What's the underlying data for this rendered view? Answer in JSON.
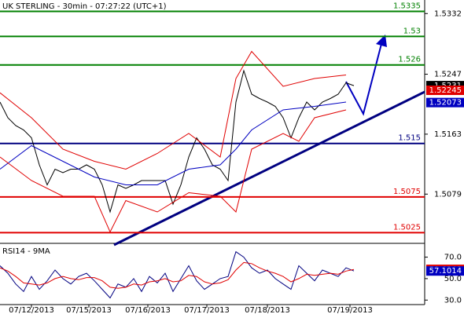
{
  "chart_data": [
    {
      "type": "line",
      "title": "UK STERLING - 30min - 07:27:22 (UTC+1)",
      "xlim": [
        0,
        54
      ],
      "xticks": [
        {
          "value": 4,
          "label": "07/12/2013"
        },
        {
          "value": 11.3,
          "label": "07/15/2013"
        },
        {
          "value": 18.8,
          "label": "07/16/2013"
        },
        {
          "value": 26.3,
          "label": "07/17/2013"
        },
        {
          "value": 34,
          "label": "07/18/2013"
        },
        {
          "value": 44.5,
          "label": "07/19/2013"
        }
      ],
      "ylim": [
        1.501,
        1.5351
      ],
      "yticks": [
        1.5332,
        1.5247,
        1.5163,
        1.5079
      ],
      "levels": [
        {
          "value": 1.5335,
          "color": "#008000"
        },
        {
          "value": 1.53,
          "color": "#008000"
        },
        {
          "value": 1.526,
          "color": "#008000"
        },
        {
          "value": 1.515,
          "color": "#000080"
        },
        {
          "value": 1.5075,
          "color": "#e00000"
        },
        {
          "value": 1.5025,
          "color": "#e00000"
        }
      ],
      "price_tags": [
        {
          "value": 1.5231,
          "color": "#000000"
        },
        {
          "value": 1.52245,
          "color": "#e00000"
        },
        {
          "value": 1.52073,
          "color": "#0000c0"
        }
      ],
      "series": [
        {
          "color": "#000000",
          "values": [
            1.5208,
            1.5186,
            1.5175,
            1.5169,
            1.5158,
            1.512,
            1.5092,
            1.5114,
            1.5109,
            1.5114,
            1.5114,
            1.512,
            1.5114,
            1.5092,
            1.5054,
            1.5092,
            1.5087,
            1.5092,
            1.5098,
            1.5098,
            1.5098,
            1.5098,
            1.5065,
            1.5092,
            1.5131,
            1.5158,
            1.5142,
            1.512,
            1.5114,
            1.5098,
            1.5208,
            1.5252,
            1.5219,
            1.5213,
            1.5208,
            1.5202,
            1.5186,
            1.5158,
            1.5186,
            1.5208,
            1.5197,
            1.5208,
            1.5213,
            1.5219,
            1.5235,
            1.5231
          ]
        },
        {
          "color": "#0000c0",
          "x": [
            0,
            4,
            8,
            12,
            16,
            20,
            24,
            28,
            30,
            32,
            36,
            40,
            44
          ],
          "values": [
            1.5114,
            1.5147,
            1.5125,
            1.5103,
            1.5092,
            1.5092,
            1.5114,
            1.512,
            1.5142,
            1.5169,
            1.5197,
            1.5202,
            1.5208
          ]
        },
        {
          "color": "#e00000",
          "x": [
            0,
            4,
            8,
            12,
            16,
            20,
            24,
            28,
            30,
            32,
            36,
            40,
            44
          ],
          "values": [
            1.5221,
            1.5186,
            1.5142,
            1.5125,
            1.5114,
            1.5136,
            1.5164,
            1.5131,
            1.5241,
            1.5279,
            1.523,
            1.5241,
            1.5246
          ]
        },
        {
          "color": "#e00000",
          "x": [
            0,
            4,
            8,
            12,
            14,
            16,
            20,
            24,
            28,
            30,
            32,
            36,
            38,
            40,
            44
          ],
          "values": [
            1.5131,
            1.5098,
            1.5076,
            1.5076,
            1.5026,
            1.507,
            1.5054,
            1.5081,
            1.5076,
            1.5054,
            1.5142,
            1.5164,
            1.5153,
            1.5186,
            1.5197
          ]
        }
      ]
    },
    {
      "type": "line",
      "title": "RSI14 - 9MA",
      "xlim": [
        0,
        54
      ],
      "ylim": [
        28,
        77
      ],
      "yticks": [
        {
          "value": 70,
          "label": "70.0"
        },
        {
          "value": 50,
          "label": "50.0"
        },
        {
          "value": 30,
          "label": "30.0"
        }
      ],
      "price_tags": [
        {
          "value": 58.6348,
          "color": "#e00000"
        },
        {
          "value": 57.1014,
          "color": "#0000c0"
        }
      ],
      "series": [
        {
          "color": "#000080",
          "values": [
            62,
            55,
            45,
            38,
            52,
            40,
            48,
            58,
            50,
            45,
            52,
            55,
            48,
            40,
            32,
            45,
            42,
            50,
            38,
            52,
            46,
            55,
            38,
            50,
            62,
            48,
            40,
            45,
            50,
            52,
            75,
            70,
            60,
            55,
            58,
            50,
            45,
            40,
            62,
            55,
            48,
            58,
            55,
            52,
            60,
            57.1
          ]
        },
        {
          "color": "#e00000",
          "values": [
            60,
            57,
            52,
            46,
            45,
            44,
            46,
            50,
            52,
            50,
            49,
            51,
            51,
            48,
            42,
            41,
            42,
            45,
            44,
            47,
            48,
            50,
            47,
            48,
            53,
            52,
            47,
            45,
            46,
            49,
            58,
            65,
            64,
            60,
            57,
            55,
            52,
            47,
            50,
            54,
            53,
            54,
            55,
            54,
            57,
            58.6
          ]
        }
      ]
    }
  ]
}
